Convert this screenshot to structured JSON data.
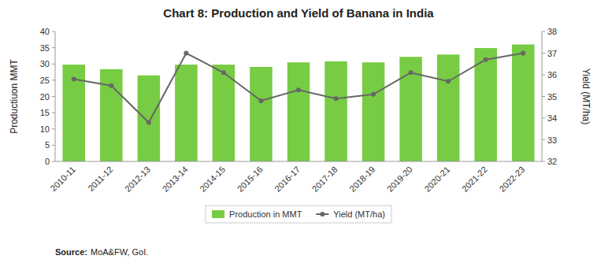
{
  "chart_data": {
    "type": "bar",
    "title": "Chart 8: Production and Yield of Banana in India",
    "categories": [
      "2010-11",
      "2011-12",
      "2012-13",
      "2013-14",
      "2014-15",
      "2015-16",
      "2016-17",
      "2017-18",
      "2018-19",
      "2019-20",
      "2020-21",
      "2021-22",
      "2022-23"
    ],
    "series": [
      {
        "name": "Production in MMT",
        "type": "bar",
        "color": "#77CC44",
        "values": [
          29.8,
          28.4,
          26.5,
          29.8,
          29.8,
          29.1,
          30.5,
          30.8,
          30.5,
          32.2,
          32.9,
          34.9,
          36.0
        ]
      },
      {
        "name": "Yield (MT/ha)",
        "type": "line",
        "axis": "y2",
        "color": "#666666",
        "marker": "circle",
        "line_style": "solid",
        "values": [
          35.8,
          35.5,
          33.8,
          37.0,
          36.1,
          34.8,
          35.3,
          34.9,
          35.1,
          36.1,
          35.7,
          36.7,
          37.0
        ]
      }
    ],
    "ylabel": "Productiuon MMT",
    "y2label": "Yield (MT/ha)",
    "ylim": [
      0,
      40
    ],
    "yticks": [
      0,
      5,
      10,
      15,
      20,
      25,
      30,
      35,
      40
    ],
    "y2lim": [
      32,
      38
    ],
    "y2ticks": [
      32,
      33,
      34,
      35,
      36,
      37,
      38
    ],
    "grid": false,
    "legend": "bottom",
    "annotations": [
      "Source:",
      "MoA&FW, GoI."
    ]
  }
}
